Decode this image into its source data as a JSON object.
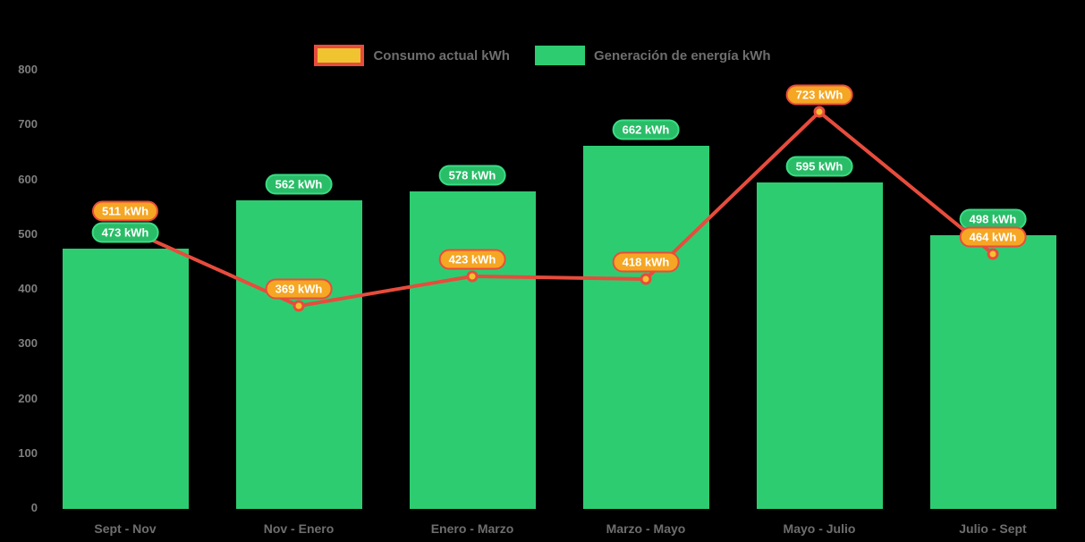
{
  "legend": {
    "items": [
      {
        "label": "Consumo actual kWh",
        "series": "line"
      },
      {
        "label": "Generación de energía kWh",
        "series": "bar"
      }
    ]
  },
  "chart_data": {
    "type": "bar+line",
    "categories": [
      "Sept - Nov",
      "Nov - Enero",
      "Enero - Marzo",
      "Marzo - Mayo",
      "Mayo - Julio",
      "Julio - Sept"
    ],
    "series": [
      {
        "name": "Consumo actual kWh",
        "type": "line",
        "values": [
          511,
          369,
          423,
          418,
          723,
          464
        ],
        "color": "#e74c3c",
        "point_color": "#f5c02e",
        "label_style": "orange-badge"
      },
      {
        "name": "Generación de energía kWh",
        "type": "bar",
        "values": [
          473,
          562,
          578,
          662,
          595,
          498
        ],
        "color": "#2ecc71",
        "label_style": "green-badge"
      }
    ],
    "unit_suffix": " kWh",
    "ylim": [
      0,
      800
    ],
    "yticks": [
      0,
      100,
      200,
      300,
      400,
      500,
      600,
      700,
      800
    ],
    "grid": false,
    "legend_position": "top-center",
    "background": "#000000"
  },
  "colors": {
    "bar": "#2ecc71",
    "line": "#e74c3c",
    "badge_green_fill": "#29bd68",
    "badge_green_border": "#3adc83",
    "badge_orange_fill": "#f5a623",
    "badge_orange_border": "#ea4c3b",
    "dot_fill": "#f5c02e",
    "axis_text": "#7e7e7e",
    "category_text": "#6e6e6e",
    "legend_text": "#6e6e6e",
    "legend_line_swatch_fill": "#f0c330",
    "legend_line_swatch_border": "#e74c3c"
  }
}
